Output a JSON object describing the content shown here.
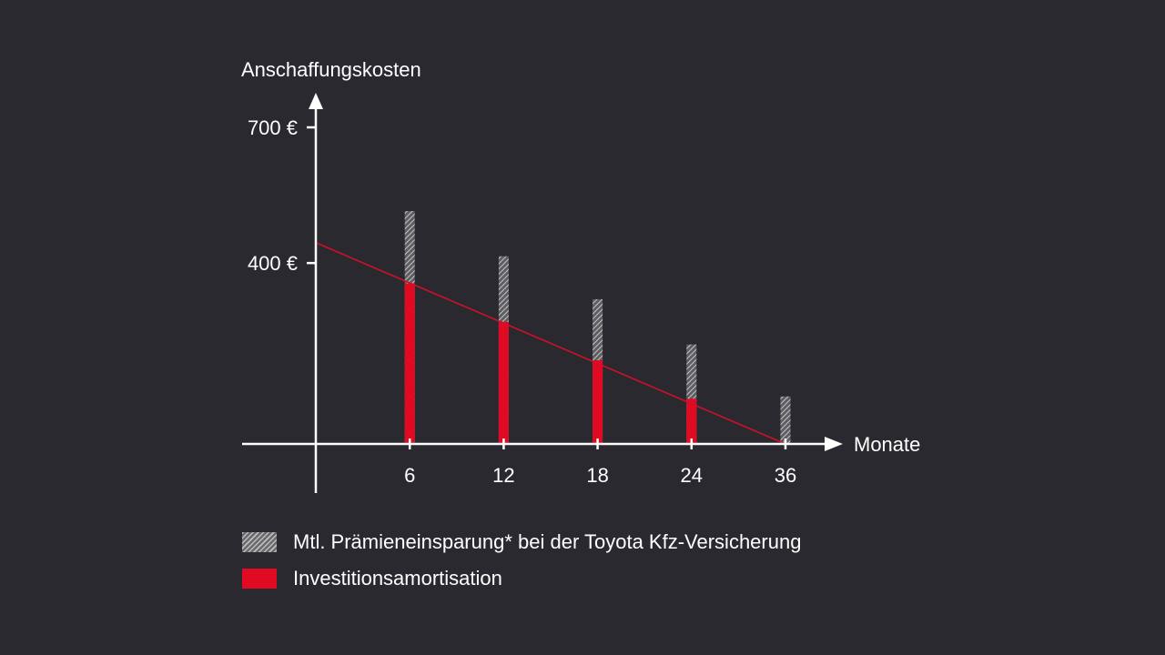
{
  "chart_data": {
    "type": "bar",
    "ylabel": "Anschaffungskosten",
    "xlabel": "Monate",
    "y_ticks": [
      {
        "value": 700,
        "label": "700 €"
      },
      {
        "value": 400,
        "label": "400 €"
      }
    ],
    "ylim": [
      0,
      750
    ],
    "categories": [
      "6",
      "12",
      "18",
      "24",
      "36"
    ],
    "x_values": [
      6,
      12,
      18,
      24,
      30
    ],
    "series": [
      {
        "name": "Mtl. Prämieneinsparung* bei der Toyota Kfz-Versicherung",
        "style": "hatched",
        "color": "#bdbdbd",
        "values": [
          515,
          415,
          320,
          220,
          105
        ]
      },
      {
        "name": "Investitionsamortisation",
        "style": "solid",
        "color": "#e00a22",
        "values": [
          355,
          270,
          185,
          100,
          0
        ]
      }
    ],
    "trend_line": {
      "color": "#d0102a",
      "points": [
        [
          0,
          445
        ],
        [
          30,
          0
        ]
      ]
    }
  },
  "legend": {
    "items": [
      {
        "label": "Mtl. Prämieneinsparung* bei der Toyota Kfz-Versicherung",
        "style": "hatched"
      },
      {
        "label": "Investitionsamortisation",
        "style": "solid"
      }
    ]
  },
  "colors": {
    "background": "#29292f",
    "axis": "#ffffff",
    "accent": "#e00a22",
    "hatch": "#bdbdbd"
  }
}
